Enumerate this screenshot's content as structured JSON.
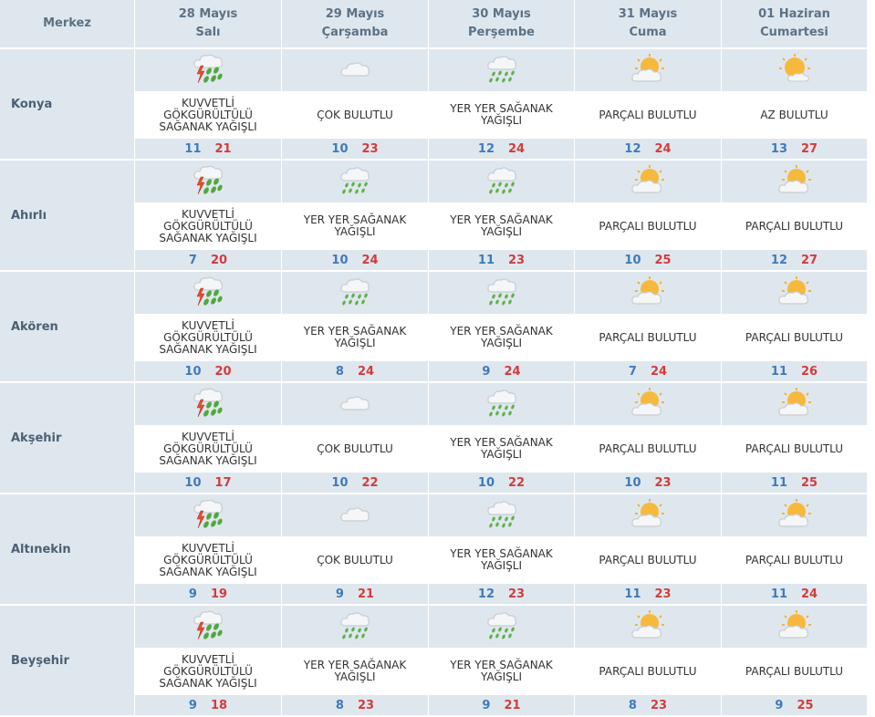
{
  "header": {
    "merkez_label": "Merkez",
    "days": [
      {
        "date": "28 Mayıs",
        "weekday": "Salı"
      },
      {
        "date": "29 Mayıs",
        "weekday": "Çarşamba"
      },
      {
        "date": "30 Mayıs",
        "weekday": "Perşembe"
      },
      {
        "date": "31 Mayıs",
        "weekday": "Cuma"
      },
      {
        "date": "01 Haziran",
        "weekday": "Cumartesi"
      }
    ]
  },
  "colors": {
    "header_bg": "#dfe7ee",
    "min_temp": "#3f7ab9",
    "max_temp": "#d23c3c"
  },
  "cities": [
    {
      "name": "Konya",
      "forecasts": [
        {
          "icon": "thunder-rain-icon",
          "desc": "KUVVETLİ GÖKGÜRÜLTÜLÜ SAĞANAK YAĞIŞLI",
          "min": "11",
          "max": "21"
        },
        {
          "icon": "cloud-icon",
          "desc": "ÇOK BULUTLU",
          "min": "10",
          "max": "23"
        },
        {
          "icon": "showers-icon",
          "desc": "YER YER SAĞANAK YAĞIŞLI",
          "min": "12",
          "max": "24"
        },
        {
          "icon": "partly-cloudy-icon",
          "desc": "PARÇALI BULUTLU",
          "min": "12",
          "max": "24"
        },
        {
          "icon": "mostly-sunny-icon",
          "desc": "AZ BULUTLU",
          "min": "13",
          "max": "27"
        }
      ]
    },
    {
      "name": "Ahırlı",
      "forecasts": [
        {
          "icon": "thunder-rain-icon",
          "desc": "KUVVETLİ GÖKGÜRÜLTÜLÜ SAĞANAK YAĞIŞLI",
          "min": "7",
          "max": "20"
        },
        {
          "icon": "showers-icon",
          "desc": "YER YER SAĞANAK YAĞIŞLI",
          "min": "10",
          "max": "24"
        },
        {
          "icon": "showers-icon",
          "desc": "YER YER SAĞANAK YAĞIŞLI",
          "min": "11",
          "max": "23"
        },
        {
          "icon": "partly-cloudy-icon",
          "desc": "PARÇALI BULUTLU",
          "min": "10",
          "max": "25"
        },
        {
          "icon": "partly-cloudy-icon",
          "desc": "PARÇALI BULUTLU",
          "min": "12",
          "max": "27"
        }
      ]
    },
    {
      "name": "Akören",
      "forecasts": [
        {
          "icon": "thunder-rain-icon",
          "desc": "KUVVETLİ GÖKGÜRÜLTÜLÜ SAĞANAK YAĞIŞLI",
          "min": "10",
          "max": "20"
        },
        {
          "icon": "showers-icon",
          "desc": "YER YER SAĞANAK YAĞIŞLI",
          "min": "8",
          "max": "24"
        },
        {
          "icon": "showers-icon",
          "desc": "YER YER SAĞANAK YAĞIŞLI",
          "min": "9",
          "max": "24"
        },
        {
          "icon": "partly-cloudy-icon",
          "desc": "PARÇALI BULUTLU",
          "min": "7",
          "max": "24"
        },
        {
          "icon": "partly-cloudy-icon",
          "desc": "PARÇALI BULUTLU",
          "min": "11",
          "max": "26"
        }
      ]
    },
    {
      "name": "Akşehir",
      "forecasts": [
        {
          "icon": "thunder-rain-icon",
          "desc": "KUVVETLİ GÖKGÜRÜLTÜLÜ SAĞANAK YAĞIŞLI",
          "min": "10",
          "max": "17"
        },
        {
          "icon": "cloud-icon",
          "desc": "ÇOK BULUTLU",
          "min": "10",
          "max": "22"
        },
        {
          "icon": "showers-icon",
          "desc": "YER YER SAĞANAK YAĞIŞLI",
          "min": "10",
          "max": "22"
        },
        {
          "icon": "partly-cloudy-icon",
          "desc": "PARÇALI BULUTLU",
          "min": "10",
          "max": "23"
        },
        {
          "icon": "partly-cloudy-icon",
          "desc": "PARÇALI BULUTLU",
          "min": "11",
          "max": "25"
        }
      ]
    },
    {
      "name": "Altınekin",
      "forecasts": [
        {
          "icon": "thunder-rain-icon",
          "desc": "KUVVETLİ GÖKGÜRÜLTÜLÜ SAĞANAK YAĞIŞLI",
          "min": "9",
          "max": "19"
        },
        {
          "icon": "cloud-icon",
          "desc": "ÇOK BULUTLU",
          "min": "9",
          "max": "21"
        },
        {
          "icon": "showers-icon",
          "desc": "YER YER SAĞANAK YAĞIŞLI",
          "min": "12",
          "max": "23"
        },
        {
          "icon": "partly-cloudy-icon",
          "desc": "PARÇALI BULUTLU",
          "min": "11",
          "max": "23"
        },
        {
          "icon": "partly-cloudy-icon",
          "desc": "PARÇALI BULUTLU",
          "min": "11",
          "max": "24"
        }
      ]
    },
    {
      "name": "Beyşehir",
      "forecasts": [
        {
          "icon": "thunder-rain-icon",
          "desc": "KUVVETLİ GÖKGÜRÜLTÜLÜ SAĞANAK YAĞIŞLI",
          "min": "9",
          "max": "18"
        },
        {
          "icon": "showers-icon",
          "desc": "YER YER SAĞANAK YAĞIŞLI",
          "min": "8",
          "max": "23"
        },
        {
          "icon": "showers-icon",
          "desc": "YER YER SAĞANAK YAĞIŞLI",
          "min": "9",
          "max": "21"
        },
        {
          "icon": "partly-cloudy-icon",
          "desc": "PARÇALI BULUTLU",
          "min": "8",
          "max": "23"
        },
        {
          "icon": "partly-cloudy-icon",
          "desc": "PARÇALI BULUTLU",
          "min": "9",
          "max": "25"
        }
      ]
    }
  ]
}
